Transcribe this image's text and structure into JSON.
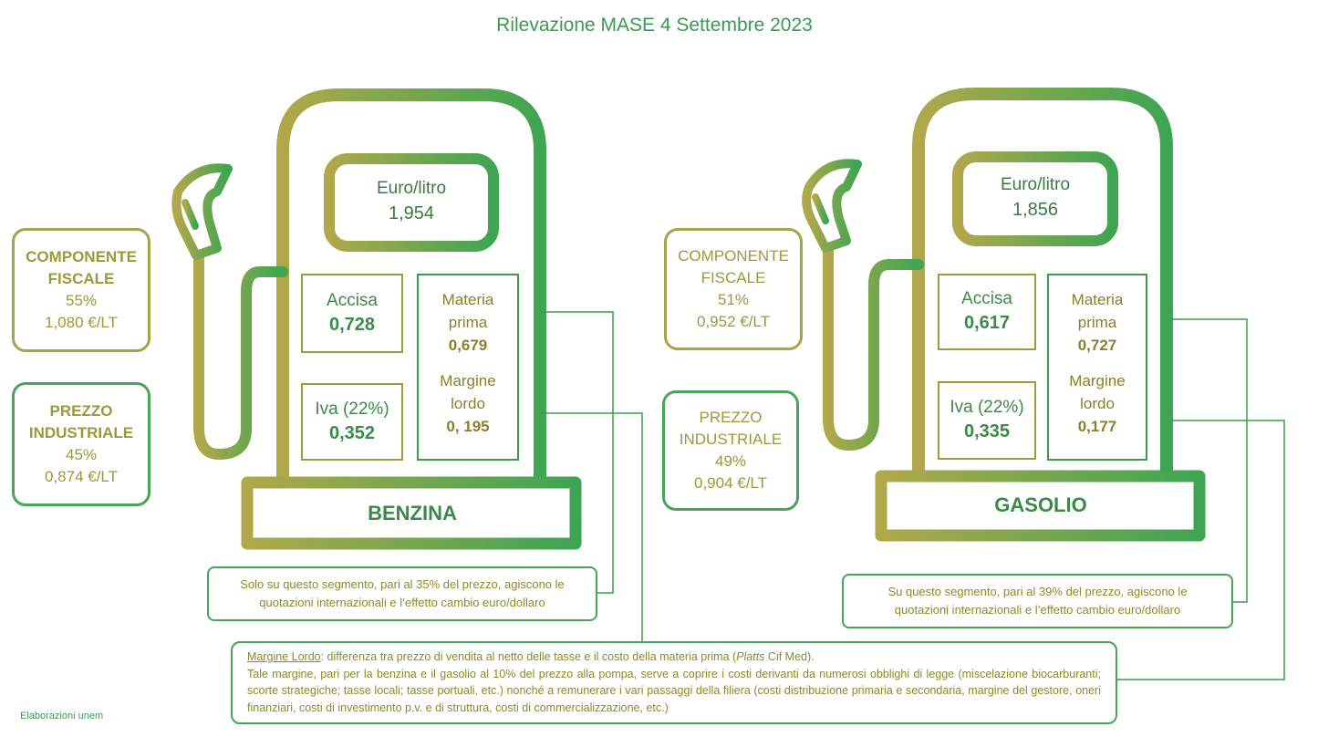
{
  "title": "Rilevazione MASE 4 Settembre 2023",
  "colors": {
    "olive": "#a6a447",
    "green": "#48a458",
    "title": "#3c9a4e"
  },
  "benzina": {
    "name": "BENZINA",
    "price_label": "Euro/litro",
    "price": "1,954",
    "accisa_label": "Accisa",
    "accisa": "0,728",
    "iva_label": "Iva (22%)",
    "iva": "0,352",
    "materia_label_1": "Materia",
    "materia_label_2": "prima",
    "materia": "0,679",
    "margine_label_1": "Margine",
    "margine_label_2": "lordo",
    "margine": "0, 195",
    "fiscale": {
      "line1": "COMPONENTE",
      "line2": "FISCALE",
      "pct": "55%",
      "amount": "1,080 €/LT"
    },
    "industriale": {
      "line1": "PREZZO",
      "line2": "INDUSTRIALE",
      "pct": "45%",
      "amount": "0,874 €/LT"
    },
    "note_1": "Solo su questo segmento, pari al 35% del prezzo, agiscono le",
    "note_2": "quotazioni internazionali e l’effetto cambio euro/dollaro"
  },
  "gasolio": {
    "name": "GASOLIO",
    "price_label": "Euro/litro",
    "price": "1,856",
    "accisa_label": "Accisa",
    "accisa": "0,617",
    "iva_label": "Iva (22%)",
    "iva": "0,335",
    "materia_label_1": "Materia",
    "materia_label_2": "prima",
    "materia": "0,727",
    "margine_label_1": "Margine",
    "margine_label_2": "lordo",
    "margine": "0,177",
    "fiscale": {
      "line1": "COMPONENTE",
      "line2": "FISCALE",
      "pct": "51%",
      "amount": "0,952 €/LT"
    },
    "industriale": {
      "line1": "PREZZO",
      "line2": "INDUSTRIALE",
      "pct": "49%",
      "amount": "0,904 €/LT"
    },
    "note_1": "Su questo segmento, pari al 39% del prezzo, agiscono le",
    "note_2": "quotazioni internazionali e l’effetto cambio euro/dollaro"
  },
  "margin_note": {
    "term": "Margine Lordo",
    "line1_rest": ": differenza tra prezzo di vendita al netto delle tasse e il costo della materia prima (",
    "source": "Platts",
    "line1_end": " Cif Med).",
    "body": "Tale margine, pari per la benzina e il gasolio al 10% del prezzo alla pompa, serve a coprire i costi derivanti da numerosi obblighi di legge (miscelazione biocarburanti; scorte strategiche; tasse locali; tasse portuali, etc.) nonché a remunerare i vari passaggi della filiera (costi distribuzione primaria e secondaria, margine del gestore, oneri finanziari, costi di investimento p.v. e di struttura, costi di commercializzazione, etc.)"
  },
  "credit": "Elaborazioni unem"
}
